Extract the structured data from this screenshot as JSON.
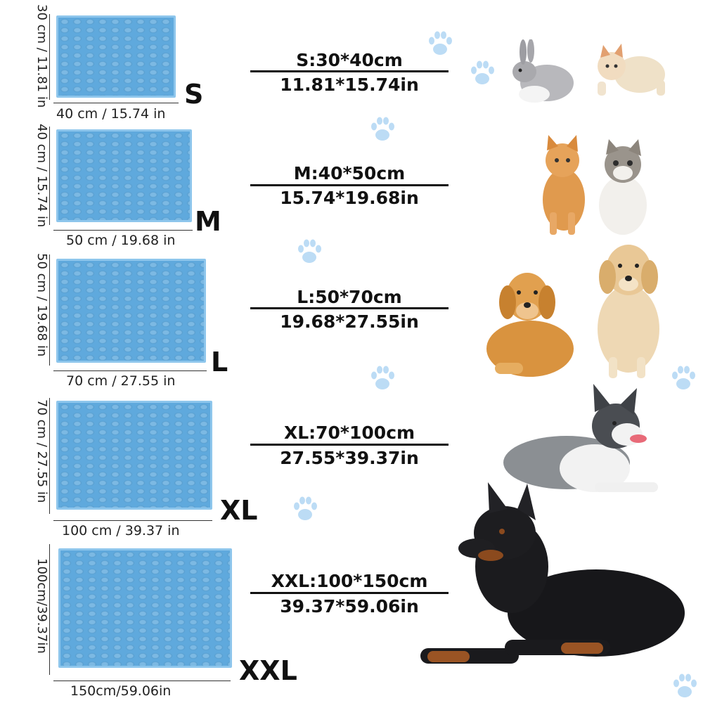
{
  "sizes": [
    {
      "label": "S",
      "spec_cm": "S:30*40cm",
      "spec_in": "11.81*15.74in",
      "width_label": "40 cm / 15.74 in",
      "height_label": "30 cm / 11.81 in"
    },
    {
      "label": "M",
      "spec_cm": "M:40*50cm",
      "spec_in": "15.74*19.68in",
      "width_label": "50 cm / 19.68 in",
      "height_label": "40 cm / 15.74 in"
    },
    {
      "label": "L",
      "spec_cm": "L:50*70cm",
      "spec_in": "19.68*27.55in",
      "width_label": "70 cm / 27.55 in",
      "height_label": "50 cm / 19.68 in"
    },
    {
      "label": "XL",
      "spec_cm": "XL:70*100cm",
      "spec_in": "27.55*39.37in",
      "width_label": "100 cm / 39.37 in",
      "height_label": "70 cm / 27.55 in"
    },
    {
      "label": "XXL",
      "spec_cm": "XXL:100*150cm",
      "spec_in": "39.37*59.06in",
      "width_label": "150cm/59.06in",
      "height_label": "100cm/39.37in"
    }
  ],
  "colors": {
    "mat": "#5fa9dd",
    "mat_border": "#8ec6ec",
    "paw": "#bcdcf5"
  },
  "pets": [
    "rabbit",
    "cat",
    "cat",
    "cat",
    "dog",
    "dog",
    "dog",
    "dog"
  ]
}
